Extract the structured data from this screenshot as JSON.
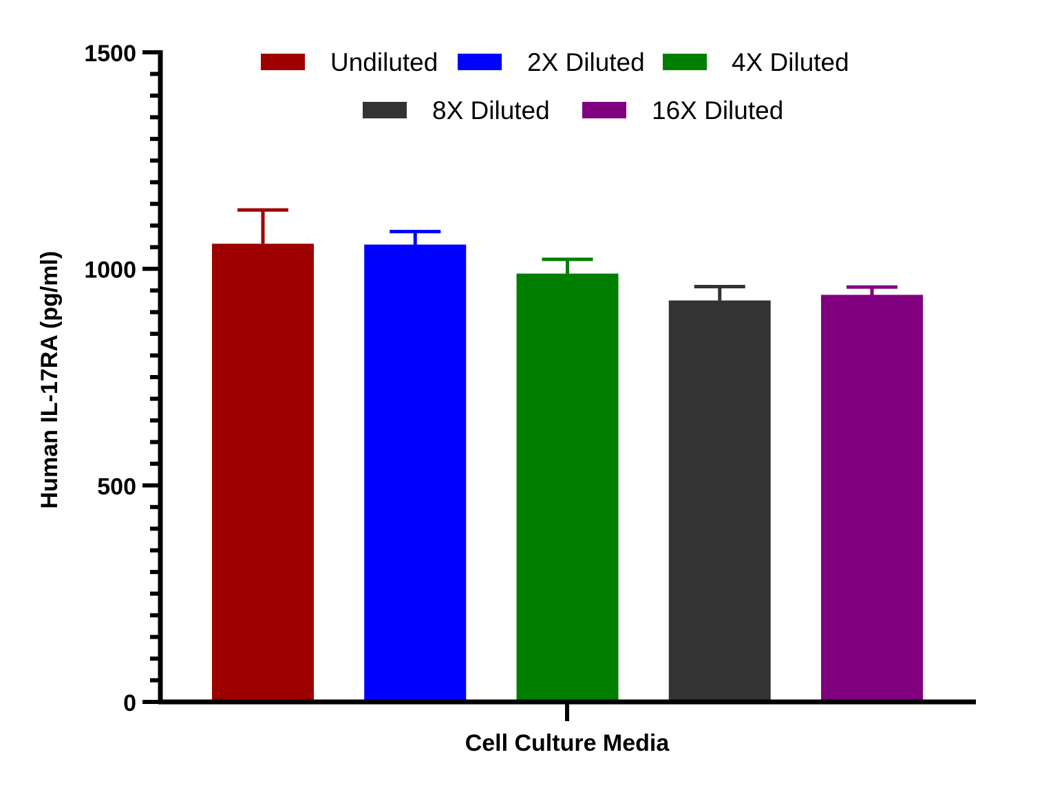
{
  "chart_data": {
    "type": "bar",
    "title": "",
    "xlabel": "Cell Culture Media",
    "ylabel": "Human IL-17RA (pg/ml)",
    "ylim": [
      0,
      1500
    ],
    "yticks": [
      0,
      500,
      1000,
      1500
    ],
    "y_minor_tick_step": 50,
    "grid": false,
    "legend_position": "top",
    "series": [
      {
        "name": "Undiluted",
        "value": 1058,
        "error": 78,
        "color": "#9e0000"
      },
      {
        "name": "2X Diluted",
        "value": 1056,
        "error": 30,
        "color": "#0000ff"
      },
      {
        "name": "4X Diluted",
        "value": 989,
        "error": 33,
        "color": "#007f00"
      },
      {
        "name": "8X Diluted",
        "value": 927,
        "error": 32,
        "color": "#333333"
      },
      {
        "name": "16X Diluted",
        "value": 940,
        "error": 18,
        "color": "#800080"
      }
    ]
  }
}
